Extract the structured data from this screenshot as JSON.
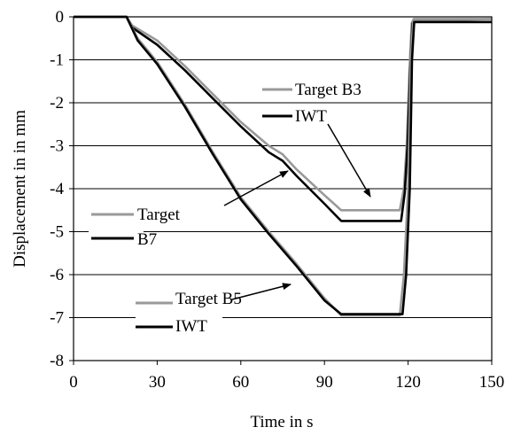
{
  "chart_data": {
    "type": "line",
    "xlabel": "Time in s",
    "ylabel": "Displacement in in mm",
    "xlim": [
      0,
      150
    ],
    "ylim": [
      -8,
      0
    ],
    "xticks": [
      0,
      30,
      60,
      90,
      120,
      150
    ],
    "yticks": [
      0,
      -1,
      -2,
      -3,
      -4,
      -5,
      -6,
      -7,
      -8
    ],
    "xtick_labels": [
      "0",
      "30",
      "60",
      "90",
      "120",
      "150"
    ],
    "ytick_labels": [
      "0",
      "-1",
      "-2",
      "-3",
      "-4",
      "-5",
      "-6",
      "-7",
      "-8"
    ],
    "grid": "horizontal",
    "series": [
      {
        "name": "Target B3",
        "color": "#999999",
        "points": [
          [
            0,
            0
          ],
          [
            19,
            0
          ],
          [
            21,
            -0.2
          ],
          [
            30,
            -0.55
          ],
          [
            40,
            -1.15
          ],
          [
            50,
            -1.8
          ],
          [
            60,
            -2.45
          ],
          [
            70,
            -3.0
          ],
          [
            75,
            -3.2
          ],
          [
            80,
            -3.55
          ],
          [
            90,
            -4.15
          ],
          [
            96,
            -4.5
          ],
          [
            117,
            -4.5
          ],
          [
            118.5,
            -4.0
          ],
          [
            119.5,
            -3.0
          ],
          [
            120.5,
            -1.2
          ],
          [
            121.3,
            -0.15
          ],
          [
            122,
            -0.05
          ],
          [
            150,
            -0.05
          ]
        ]
      },
      {
        "name": "IWT",
        "color": "#000000",
        "points": [
          [
            0,
            0
          ],
          [
            19,
            0
          ],
          [
            21,
            -0.25
          ],
          [
            30,
            -0.65
          ],
          [
            40,
            -1.25
          ],
          [
            50,
            -1.9
          ],
          [
            60,
            -2.55
          ],
          [
            70,
            -3.15
          ],
          [
            75,
            -3.35
          ],
          [
            80,
            -3.7
          ],
          [
            90,
            -4.35
          ],
          [
            96,
            -4.75
          ],
          [
            117.5,
            -4.75
          ],
          [
            118.8,
            -4.1
          ],
          [
            119.8,
            -3.0
          ],
          [
            120.8,
            -1.2
          ],
          [
            121.6,
            -0.15
          ],
          [
            122.3,
            -0.12
          ],
          [
            150,
            -0.12
          ]
        ]
      },
      {
        "name": "Target",
        "color": "#999999",
        "points": [
          [
            0,
            0
          ],
          [
            19,
            0
          ],
          [
            23,
            -0.5
          ],
          [
            30,
            -1.05
          ],
          [
            40,
            -2.05
          ],
          [
            50,
            -3.15
          ],
          [
            60,
            -4.2
          ],
          [
            70,
            -5.0
          ],
          [
            80,
            -5.75
          ],
          [
            90,
            -6.55
          ],
          [
            96,
            -6.95
          ],
          [
            117,
            -6.95
          ],
          [
            118.5,
            -6.0
          ],
          [
            120,
            -4.0
          ],
          [
            121,
            -1.0
          ],
          [
            121.8,
            -0.1
          ],
          [
            150,
            -0.05
          ]
        ]
      },
      {
        "name": "B7",
        "color": "#000000",
        "points": [
          [
            0,
            0
          ],
          [
            19,
            0
          ],
          [
            23,
            -0.55
          ],
          [
            30,
            -1.1
          ],
          [
            40,
            -2.1
          ],
          [
            50,
            -3.2
          ],
          [
            60,
            -4.25
          ],
          [
            70,
            -5.05
          ],
          [
            80,
            -5.8
          ],
          [
            90,
            -6.6
          ],
          [
            96,
            -6.92
          ],
          [
            118,
            -6.92
          ],
          [
            119.3,
            -6.0
          ],
          [
            120.6,
            -4.0
          ],
          [
            121.4,
            -1.0
          ],
          [
            122.2,
            -0.12
          ],
          [
            150,
            -0.12
          ]
        ]
      }
    ],
    "legend_groups": [
      {
        "gray_label": "Target B3",
        "black_label": "IWT"
      },
      {
        "gray_label": "Target",
        "black_label": "B7"
      },
      {
        "gray_label": "Target B5",
        "black_label": "IWT"
      }
    ]
  }
}
